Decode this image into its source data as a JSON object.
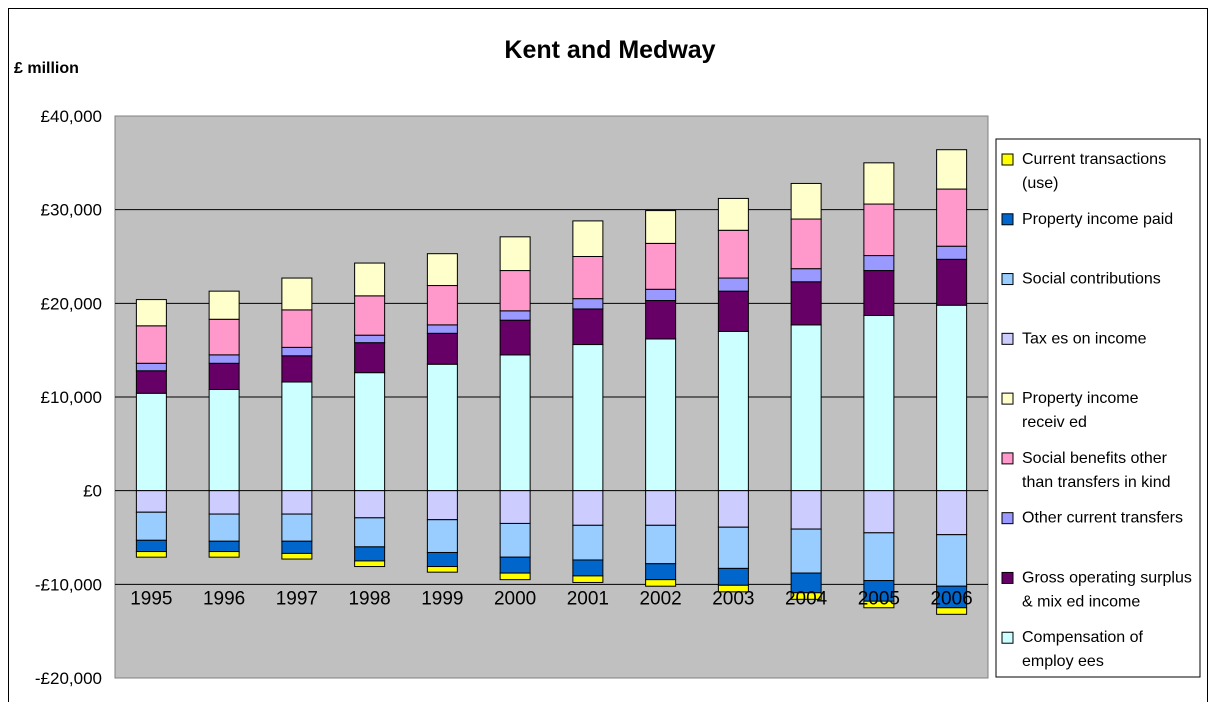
{
  "chart_data": {
    "type": "bar",
    "stacked": true,
    "title": "Kent and Medway",
    "unit_label": "£ million",
    "xlabel": "",
    "ylabel": "",
    "ylim": [
      -20000,
      40000
    ],
    "yticks": [
      {
        "value": 40000,
        "label": "£40,000"
      },
      {
        "value": 30000,
        "label": "£30,000"
      },
      {
        "value": 20000,
        "label": "£20,000"
      },
      {
        "value": 10000,
        "label": "£10,000"
      },
      {
        "value": 0,
        "label": "£0"
      },
      {
        "value": -10000,
        "label": "-£10,000"
      },
      {
        "value": -20000,
        "label": "-£20,000"
      }
    ],
    "grid": true,
    "legend_position": "right",
    "categories": [
      "1995",
      "1996",
      "1997",
      "1998",
      "1999",
      "2000",
      "2001",
      "2002",
      "2003",
      "2004",
      "2005",
      "2006"
    ],
    "positive_series": [
      {
        "name": "Compensation of employees",
        "color": "#ccffff",
        "values": [
          10400,
          10800,
          11600,
          12600,
          13500,
          14500,
          15600,
          16200,
          17000,
          17700,
          18700,
          19800
        ]
      },
      {
        "name": "Gross operating surplus & mixed income",
        "color": "#660066",
        "values": [
          2400,
          2800,
          2800,
          3200,
          3300,
          3700,
          3800,
          4100,
          4300,
          4600,
          4800,
          4900
        ]
      },
      {
        "name": "Other current transfers",
        "color": "#9999ff",
        "values": [
          800,
          900,
          900,
          800,
          900,
          1000,
          1100,
          1200,
          1400,
          1400,
          1600,
          1400
        ]
      },
      {
        "name": "Social benefits other than transfers in kind",
        "color": "#ff99cc",
        "values": [
          4000,
          3800,
          4000,
          4200,
          4200,
          4300,
          4500,
          4900,
          5100,
          5300,
          5500,
          6100
        ]
      },
      {
        "name": "Property income received",
        "color": "#ffffcc",
        "values": [
          2800,
          3000,
          3400,
          3500,
          3400,
          3600,
          3800,
          3500,
          3400,
          3800,
          4400,
          4200
        ]
      }
    ],
    "negative_series": [
      {
        "name": "Taxes on income",
        "color": "#ccccff",
        "values": [
          -2300,
          -2500,
          -2500,
          -2900,
          -3100,
          -3500,
          -3700,
          -3700,
          -3900,
          -4100,
          -4500,
          -4700
        ]
      },
      {
        "name": "Social contributions",
        "color": "#99ccff",
        "values": [
          -3000,
          -2900,
          -2900,
          -3100,
          -3500,
          -3600,
          -3700,
          -4100,
          -4400,
          -4700,
          -5100,
          -5500
        ]
      },
      {
        "name": "Property income paid",
        "color": "#0066cc",
        "values": [
          -1200,
          -1100,
          -1300,
          -1500,
          -1500,
          -1700,
          -1700,
          -1700,
          -1800,
          -2100,
          -2200,
          -2300
        ]
      },
      {
        "name": "Current transactions (use)",
        "color": "#ffff00",
        "values": [
          -600,
          -600,
          -600,
          -600,
          -600,
          -700,
          -700,
          -700,
          -700,
          -700,
          -700,
          -700
        ]
      }
    ],
    "legend": [
      {
        "lines": [
          "Current transactions",
          "(use)"
        ],
        "color": "#ffff00"
      },
      {
        "lines": [
          "Property  income paid"
        ],
        "color": "#0066cc"
      },
      {
        "lines": [
          "Social contributions"
        ],
        "color": "#99ccff"
      },
      {
        "lines": [
          "Tax es on income"
        ],
        "color": "#ccccff"
      },
      {
        "lines": [
          "Property  income",
          "receiv ed"
        ],
        "color": "#ffffcc"
      },
      {
        "lines": [
          "Social benefits other",
          "than transfers in kind"
        ],
        "color": "#ff99cc"
      },
      {
        "lines": [
          "Other current transfers"
        ],
        "color": "#9999ff"
      },
      {
        "lines": [
          "Gross operating surplus",
          "& mix ed income"
        ],
        "color": "#660066"
      },
      {
        "lines": [
          "Compensation of",
          "employ ees"
        ],
        "color": "#ccffff"
      }
    ]
  }
}
